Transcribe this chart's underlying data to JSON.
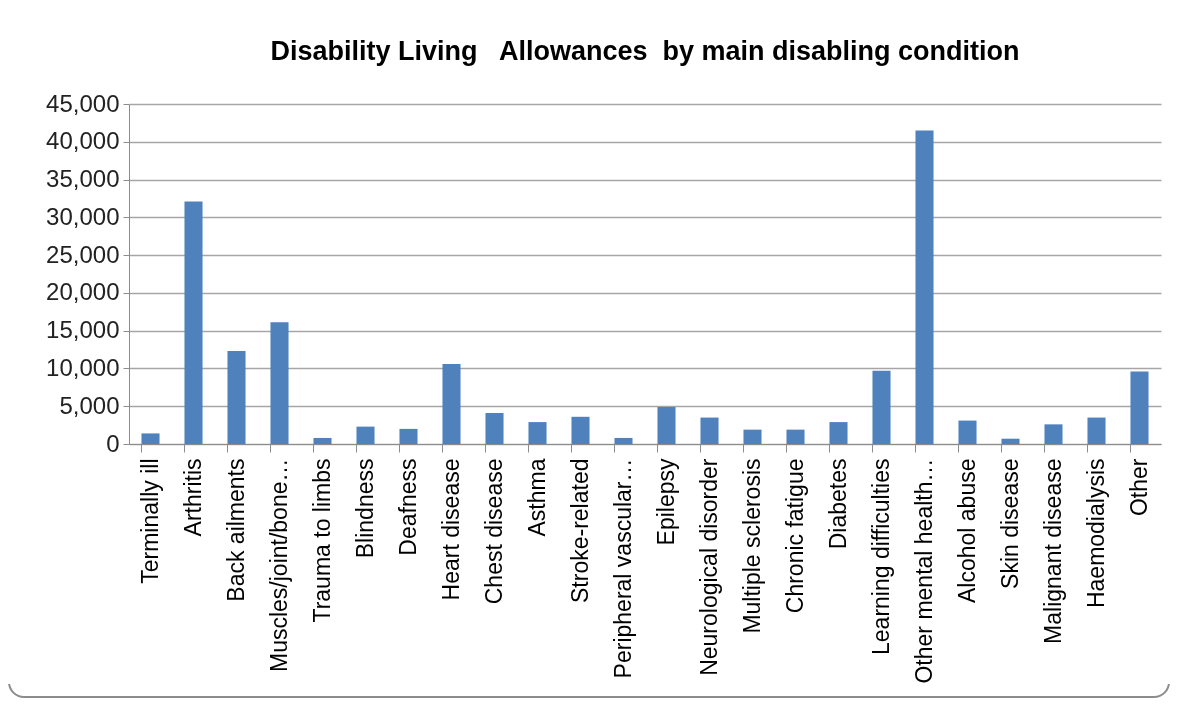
{
  "chart_data": {
    "type": "bar",
    "title": "Disability Living   Allowances  by main disabling condition",
    "categories": [
      "Terminally ill",
      "Arthritis",
      "Back ailments",
      "Muscles/joint/bone…",
      "Trauma to limbs",
      "Blindness",
      "Deafness",
      "Heart disease",
      "Chest disease",
      "Asthma",
      "Stroke-related",
      "Peripheral vascular…",
      "Epilepsy",
      "Neurological disorder",
      "Multiple sclerosis",
      "Chronic fatigue",
      "Diabetes",
      "Learning difficulties",
      "Other mental health…",
      "Alcohol abuse",
      "Skin disease",
      "Malignant disease",
      "Haemodialysis",
      "Other"
    ],
    "values": [
      1400,
      32100,
      12300,
      16100,
      800,
      2300,
      2000,
      10600,
      4100,
      2900,
      3600,
      800,
      4900,
      3500,
      1900,
      1900,
      2900,
      9700,
      41500,
      3100,
      700,
      2600,
      3500,
      9600
    ],
    "color": "#4f81bd",
    "ylim": [
      0,
      45000
    ],
    "yticks": [
      0,
      {
        "value": 5000,
        "label": "5,000"
      },
      {
        "value": 10000,
        "label": "10,000"
      },
      {
        "value": 15000,
        "label": "15,000"
      },
      {
        "value": 20000,
        "label": "20,000"
      },
      {
        "value": 25000,
        "label": "25,000"
      },
      {
        "value": 30000,
        "label": "30,000"
      },
      {
        "value": 35000,
        "label": "35,000"
      },
      {
        "value": 40000,
        "label": "40,000"
      },
      {
        "value": 45000,
        "label": "45,000"
      }
    ],
    "grid": "y"
  }
}
